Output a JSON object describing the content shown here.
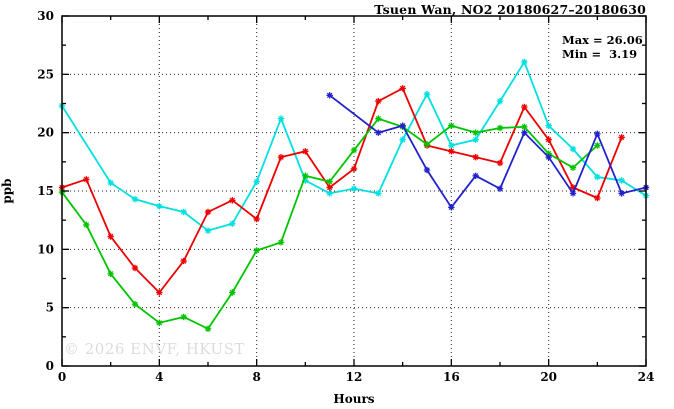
{
  "title": "Tsuen Wan, NO2 20180627–20180630",
  "stats": {
    "max_line": "Max = 26.06",
    "min_line": "Min =  3.19",
    "max_value": 26.06,
    "min_value": 3.19
  },
  "watermark": "© 2026 ENVF, HKUST",
  "chart_data": {
    "type": "line",
    "title": "Tsuen Wan, NO2 20180627–20180630",
    "xlabel": "Hours",
    "ylabel": "ppb",
    "xlim": [
      0,
      24
    ],
    "ylim": [
      0,
      30
    ],
    "grid": "dotted",
    "xticks": [
      0,
      4,
      8,
      12,
      16,
      20,
      24
    ],
    "xticks_minor": [
      2,
      6,
      10,
      14,
      18,
      22
    ],
    "yticks": [
      0,
      5,
      10,
      15,
      20,
      25,
      30
    ],
    "yticks_minor": [
      2.5,
      7.5,
      12.5,
      17.5,
      22.5,
      27.5
    ],
    "x_gridlines": [
      4,
      8,
      12,
      16,
      20
    ],
    "y_gridlines": [
      5,
      10,
      15,
      20,
      25
    ],
    "series": [
      {
        "name": "cyan",
        "color": "#00e0e0",
        "points": [
          [
            0,
            22.3
          ],
          [
            2,
            15.7
          ],
          [
            3,
            14.3
          ],
          [
            4,
            13.7
          ],
          [
            5,
            13.2
          ],
          [
            6,
            11.6
          ],
          [
            7,
            12.2
          ],
          [
            8,
            15.8
          ],
          [
            9,
            21.2
          ],
          [
            10,
            15.9
          ],
          [
            11,
            14.8
          ],
          [
            12,
            15.2
          ],
          [
            13,
            14.8
          ],
          [
            14,
            19.4
          ],
          [
            15,
            23.3
          ],
          [
            16,
            18.9
          ],
          [
            17,
            19.4
          ],
          [
            18,
            22.7
          ],
          [
            19,
            26.06
          ],
          [
            20,
            20.6
          ],
          [
            21,
            18.6
          ],
          [
            22,
            16.2
          ],
          [
            23,
            15.9
          ],
          [
            24,
            14.6
          ]
        ]
      },
      {
        "name": "red",
        "color": "#ee0000",
        "points": [
          [
            0,
            15.3
          ],
          [
            1,
            16.0
          ],
          [
            2,
            11.1
          ],
          [
            3,
            8.4
          ],
          [
            4,
            6.3
          ],
          [
            5,
            9.0
          ],
          [
            6,
            13.2
          ],
          [
            7,
            14.2
          ],
          [
            8,
            12.6
          ],
          [
            9,
            17.9
          ],
          [
            10,
            18.4
          ],
          [
            11,
            15.3
          ],
          [
            12,
            16.9
          ],
          [
            13,
            22.7
          ],
          [
            14,
            23.8
          ],
          [
            15,
            18.9
          ],
          [
            16,
            18.4
          ],
          [
            17,
            17.9
          ],
          [
            18,
            17.4
          ],
          [
            19,
            22.2
          ],
          [
            20,
            19.4
          ],
          [
            21,
            15.3
          ],
          [
            22,
            14.4
          ],
          [
            23,
            19.6
          ]
        ]
      },
      {
        "name": "green",
        "color": "#00c400",
        "points": [
          [
            0,
            14.9
          ],
          [
            1,
            12.1
          ],
          [
            2,
            7.9
          ],
          [
            3,
            5.3
          ],
          [
            4,
            3.7
          ],
          [
            5,
            4.2
          ],
          [
            6,
            3.19
          ],
          [
            7,
            6.3
          ],
          [
            8,
            9.9
          ],
          [
            9,
            10.6
          ],
          [
            10,
            16.3
          ],
          [
            11,
            15.8
          ],
          [
            12,
            18.5
          ],
          [
            13,
            21.2
          ],
          [
            14,
            20.5
          ],
          [
            15,
            19.0
          ],
          [
            16,
            20.6
          ],
          [
            17,
            20.0
          ],
          [
            18,
            20.4
          ],
          [
            19,
            20.5
          ],
          [
            20,
            18.2
          ],
          [
            21,
            17.0
          ],
          [
            22,
            18.9
          ]
        ]
      },
      {
        "name": "blue",
        "color": "#2222cc",
        "points": [
          [
            11,
            23.2
          ],
          [
            13,
            20.0
          ],
          [
            14,
            20.6
          ],
          [
            15,
            16.8
          ],
          [
            16,
            13.6
          ],
          [
            17,
            16.3
          ],
          [
            18,
            15.2
          ],
          [
            19,
            20.0
          ],
          [
            20,
            17.9
          ],
          [
            21,
            14.8
          ],
          [
            22,
            19.9
          ],
          [
            23,
            14.8
          ],
          [
            24,
            15.3
          ]
        ]
      }
    ]
  }
}
